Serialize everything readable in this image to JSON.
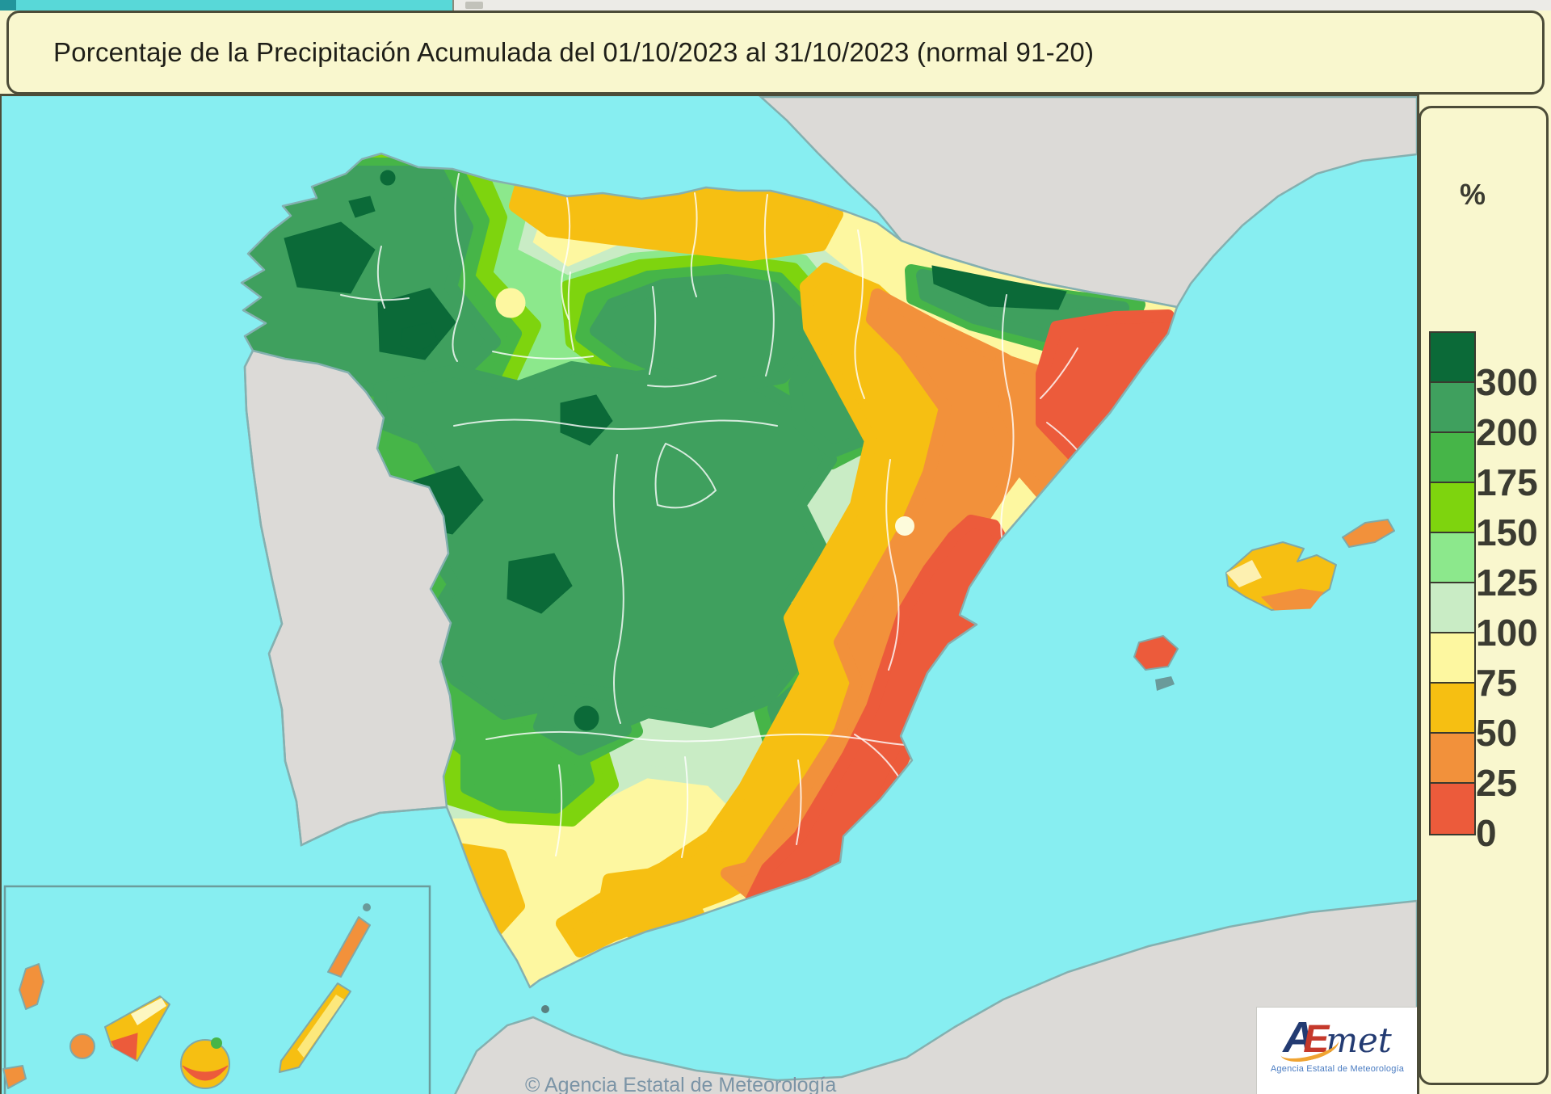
{
  "title": {
    "text": "Porcentaje de la Precipitación Acumulada del 01/10/2023 al 31/10/2023 (normal 91-20)"
  },
  "legend": {
    "unit": "%",
    "entries": [
      {
        "label": "300",
        "color": "#0b6a38"
      },
      {
        "label": "200",
        "color": "#3fa05e"
      },
      {
        "label": "175",
        "color": "#46b548"
      },
      {
        "label": "150",
        "color": "#7ed40e"
      },
      {
        "label": "125",
        "color": "#8ce88c"
      },
      {
        "label": "100",
        "color": "#c9ecc5"
      },
      {
        "label": "75",
        "color": "#fdf7a0"
      },
      {
        "label": "50",
        "color": "#f6bf12"
      },
      {
        "label": "25",
        "color": "#f2913b"
      },
      {
        "label": "0",
        "color": "#ec5b3b"
      }
    ]
  },
  "map": {
    "attribution": "© Agencia Estatal de Meteorología",
    "sea_color": "#87eef1",
    "outside_land_color": "#dcdad7",
    "coastline_color": "#84b0b0",
    "frame_border_color": "#4c4c38",
    "panel_color": "#f9f7ce"
  },
  "logo": {
    "a": "A",
    "e": "E",
    "met": "met",
    "subtitle": "Agencia Estatal de Meteorología"
  }
}
